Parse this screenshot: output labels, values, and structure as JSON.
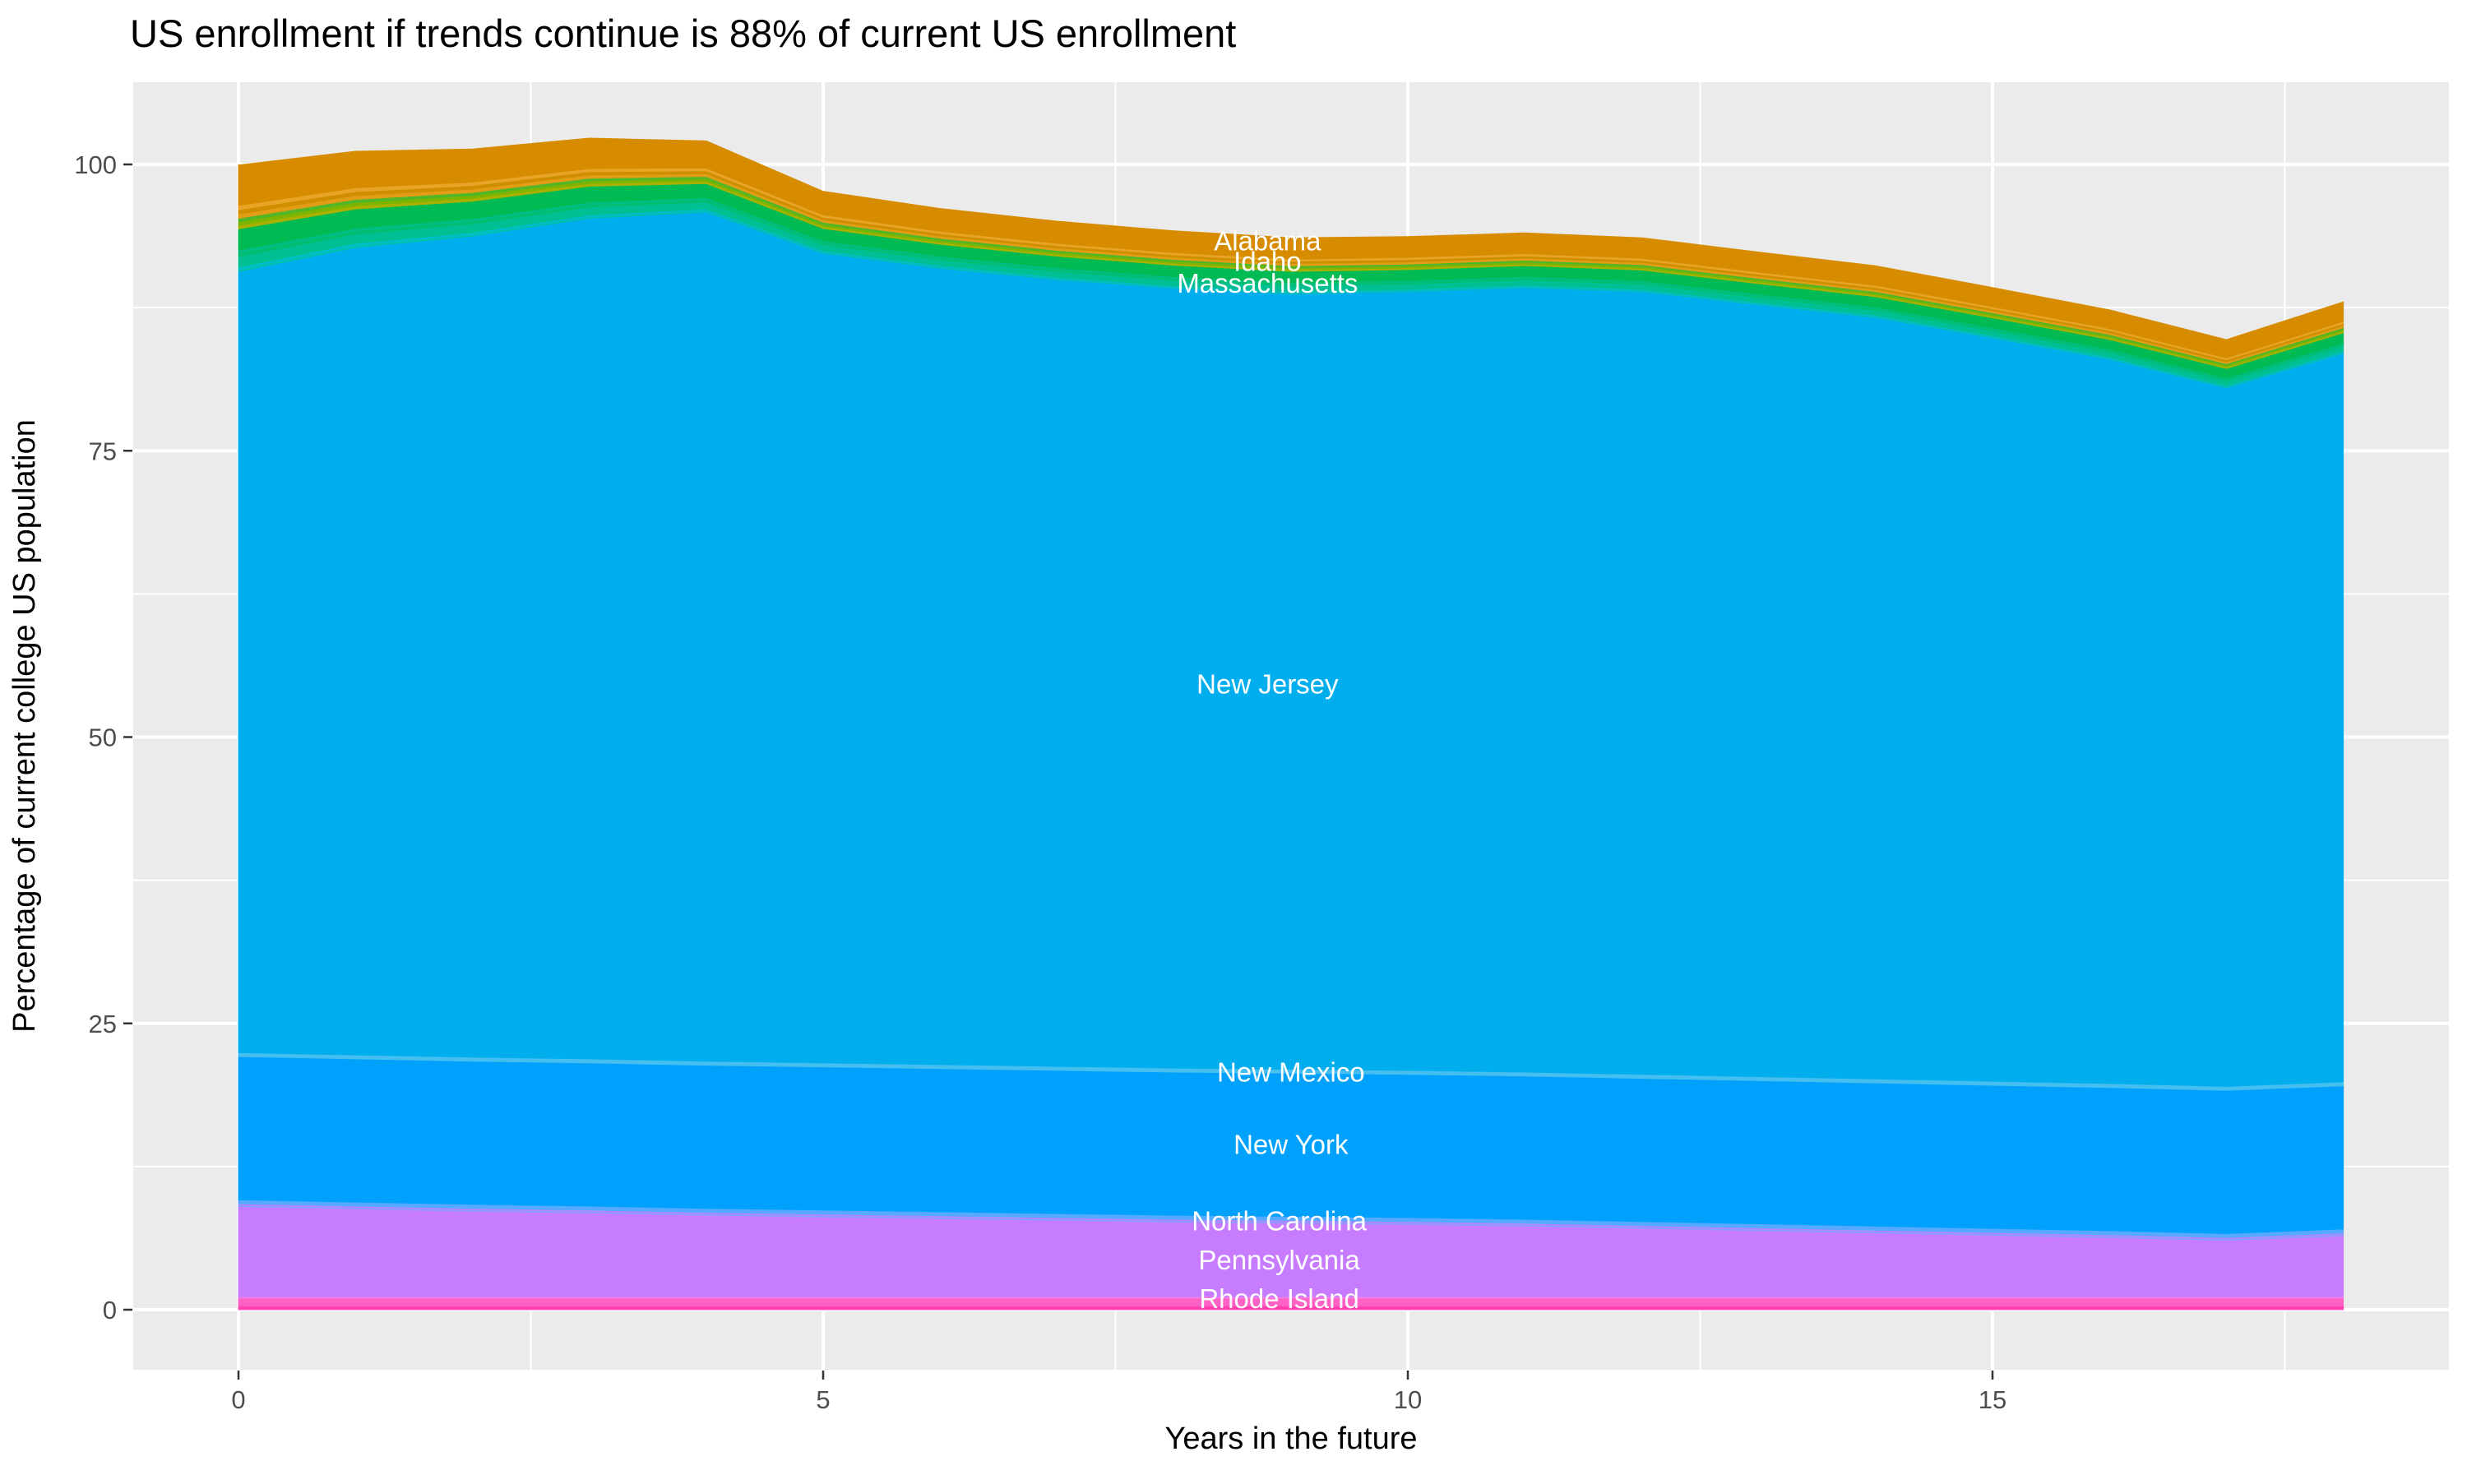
{
  "title": "US enrollment if trends continue is 88% of current US enrollment",
  "axes": {
    "x": {
      "title": "Years in the future",
      "ticks": [
        0,
        5,
        10,
        15
      ],
      "minor_ticks": [
        2.5,
        7.5,
        12.5,
        17.5
      ]
    },
    "y": {
      "title": "Percentage of current college US population",
      "ticks": [
        0,
        25,
        50,
        75,
        100
      ],
      "minor_ticks": [
        12.5,
        37.5,
        62.5,
        87.5
      ]
    }
  },
  "colors": {
    "panel_background": "#EBEBEB",
    "gridline": "#FFFFFF",
    "tick_mark": "#333333",
    "tick_label": "#4D4D4D",
    "title_text": "#000000",
    "area_label_text": "#FFFFFF"
  },
  "chart_data": {
    "type": "area",
    "stacked": true,
    "order": "top-to-bottom",
    "x": [
      0,
      1,
      2,
      3,
      4,
      5,
      6,
      7,
      8,
      9,
      10,
      11,
      12,
      13,
      14,
      15,
      16,
      17,
      18
    ],
    "xlim": [
      -0.9,
      18.9
    ],
    "ylim": [
      -5.3,
      107.5
    ],
    "total_start": 100,
    "total_end": 88,
    "series": [
      {
        "name": "Alabama",
        "labeled": true,
        "color": "#D78C00",
        "values": [
          3.53,
          3.19,
          2.89,
          2.66,
          2.36,
          2.05,
          1.98,
          1.94,
          1.9,
          1.86,
          1.82,
          1.81,
          1.79,
          1.75,
          1.71,
          1.67,
          1.63,
          1.6,
          1.71
        ]
      },
      {
        "name": "other-states-orange-hairlines",
        "labeled": false,
        "stripe_colors": [
          "#E29C16",
          "#CE8E00",
          "#E8A426"
        ],
        "values": [
          1.12,
          1.01,
          0.91,
          0.84,
          0.74,
          0.65,
          0.62,
          0.61,
          0.6,
          0.59,
          0.58,
          0.57,
          0.56,
          0.55,
          0.54,
          0.53,
          0.52,
          0.5,
          0.54
        ]
      },
      {
        "name": "other-states-yellowgreen-hairlines",
        "labeled": false,
        "stripe_colors": [
          "#A8B000",
          "#7CB400",
          "#4FB728"
        ],
        "values": [
          0.93,
          0.84,
          0.76,
          0.7,
          0.62,
          0.54,
          0.52,
          0.51,
          0.5,
          0.49,
          0.48,
          0.48,
          0.47,
          0.46,
          0.45,
          0.44,
          0.43,
          0.42,
          0.45
        ]
      },
      {
        "name": "Idaho",
        "labeled": true,
        "color": "#00BB54",
        "values": [
          1.86,
          1.68,
          1.52,
          1.4,
          1.24,
          1.08,
          1.04,
          1.02,
          1.0,
          0.98,
          0.96,
          0.95,
          0.94,
          0.92,
          0.9,
          0.88,
          0.86,
          0.84,
          0.9
        ]
      },
      {
        "name": "other-states-green-hairlines",
        "labeled": false,
        "stripe_colors": [
          "#00BD70",
          "#00BE83"
        ],
        "values": [
          0.56,
          0.5,
          0.46,
          0.42,
          0.37,
          0.32,
          0.31,
          0.31,
          0.3,
          0.29,
          0.29,
          0.29,
          0.28,
          0.28,
          0.27,
          0.26,
          0.26,
          0.25,
          0.27
        ]
      },
      {
        "name": "Massachusetts",
        "labeled": true,
        "color": "#00BF93",
        "values": [
          0.93,
          0.84,
          0.76,
          0.7,
          0.62,
          0.54,
          0.52,
          0.51,
          0.5,
          0.49,
          0.48,
          0.48,
          0.47,
          0.46,
          0.45,
          0.44,
          0.43,
          0.42,
          0.45
        ]
      },
      {
        "name": "other-states-teal-hairlines",
        "labeled": false,
        "stripe_colors": [
          "#00C0A8",
          "#00C0BE",
          "#00BDD2"
        ],
        "values": [
          0.37,
          0.34,
          0.3,
          0.28,
          0.25,
          0.22,
          0.21,
          0.2,
          0.2,
          0.2,
          0.19,
          0.19,
          0.19,
          0.18,
          0.18,
          0.18,
          0.17,
          0.17,
          0.18
        ]
      },
      {
        "name": "New Jersey",
        "labeled": true,
        "color": "#00AEEE",
        "values": [
          68.2,
          70.5,
          71.7,
          73.4,
          74.15,
          70.7,
          69.55,
          68.7,
          68.1,
          67.7,
          68.0,
          68.5,
          68.35,
          67.4,
          66.5,
          64.9,
          63.25,
          61.0,
          63.6
        ]
      },
      {
        "name": "New Mexico",
        "labeled": true,
        "color": "#45BEF0",
        "value": 0.35
      },
      {
        "name": "New York",
        "labeled": true,
        "color": "#00A1FC",
        "value": 12.5
      },
      {
        "name": "North Carolina",
        "labeled": true,
        "color": "#55AAFF",
        "value": 0.35
      },
      {
        "name": "other-states-violet-hairlines",
        "labeled": false,
        "stripe_colors": [
          "#8A9CFF",
          "#B087FF"
        ],
        "value": 0.25
      },
      {
        "name": "Pennsylvania",
        "labeled": true,
        "color": "#C77CFF",
        "values": [
          7.85,
          7.65,
          7.45,
          7.3,
          7.1,
          6.95,
          6.8,
          6.65,
          6.5,
          6.4,
          6.3,
          6.15,
          5.95,
          5.75,
          5.55,
          5.35,
          5.15,
          4.9,
          5.3
        ]
      },
      {
        "name": "other-states-lightpink-hairline",
        "labeled": false,
        "stripe_colors": [
          "#F27CE0"
        ],
        "value": 0.15
      },
      {
        "name": "Rhode Island",
        "labeled": true,
        "color": "#FF62C5",
        "value": 0.6
      },
      {
        "name": "other-states-magenta-hairlines",
        "labeled": false,
        "stripe_colors": [
          "#FF4FBC",
          "#FF37A8",
          "#FF57C0"
        ],
        "value": 0.4
      }
    ],
    "area_labels": [
      {
        "text": "Alabama",
        "x": 8.8,
        "y": 93.3
      },
      {
        "text": "Idaho",
        "x": 8.8,
        "y": 91.5
      },
      {
        "text": "Massachusetts",
        "x": 8.8,
        "y": 89.6
      },
      {
        "text": "New Jersey",
        "x": 8.8,
        "y": 54.6
      },
      {
        "text": "New Mexico",
        "x": 9.0,
        "y": 20.7
      },
      {
        "text": "New York",
        "x": 9.0,
        "y": 14.4
      },
      {
        "text": "North Carolina",
        "x": 8.9,
        "y": 7.7
      },
      {
        "text": "Pennsylvania",
        "x": 8.9,
        "y": 4.3
      },
      {
        "text": "Rhode Island",
        "x": 8.9,
        "y": 0.93
      }
    ]
  }
}
